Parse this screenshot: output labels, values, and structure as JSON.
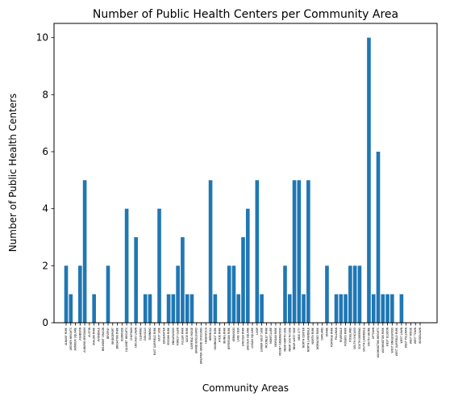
{
  "chart_data": {
    "type": "bar",
    "title": "Number of Public Health Centers per Community Area",
    "xlabel": "Community Areas",
    "ylabel": "Number of Public Health Centers",
    "ylim": [
      0,
      10.5
    ],
    "yticks": [
      0,
      2,
      4,
      6,
      8,
      10
    ],
    "bar_color": "#1f77b4",
    "grid": false,
    "categories": [
      "ALBANY PARK",
      "ARCHER HEIGHTS",
      "ARMOUR SQUARE",
      "ASHBURN",
      "AUBURN GRESHAM",
      "AUSTIN",
      "AVALON PARK",
      "AVONDALE",
      "BELMONT CRAGIN",
      "BEVERLY",
      "BRIDGEPORT",
      "BRIGHTON PARK",
      "BURNSIDE",
      "CALUMET HEIGHTS",
      "CHATHAM",
      "CHICAGO LAWN",
      "CLEARING",
      "DOUGLAS",
      "DUNNING",
      "EAST GARFIELD PARK",
      "EAST SIDE",
      "EDGEWATER",
      "EDISON PARK",
      "ENGLEWOOD",
      "FOREST GLEN",
      "FULLER PARK",
      "GAGE PARK",
      "GARFIELD RIDGE",
      "GRAND BOULEVARD",
      "GREATER GRAND CROSSING",
      "HEGEWISCH",
      "HERMOSA",
      "HUMBOLDT PARK",
      "HYDE PARK",
      "IRVING PARK",
      "JEFFERSON PARK",
      "KENWOOD",
      "LAKE VIEW",
      "LINCOLN PARK",
      "LINCOLN SQUARE",
      "LOGAN SQUARE",
      "LOOP",
      "LOWER WEST SIDE",
      "MCKINLEY PARK",
      "MONTCLARE",
      "MORGAN PARK",
      "MOUNT GREENWOOD",
      "NEAR NORTH SIDE",
      "NEAR SOUTH SIDE",
      "NEAR WEST SIDE",
      "NEW CITY",
      "NORTH CENTER",
      "NORTH LAWNDALE",
      "NORTH PARK",
      "NORWOOD PARK",
      "OAKLAND",
      "OHARE",
      "PORTAGE PARK",
      "PULLMAN",
      "RIVERDALE",
      "ROGERS PARK",
      "ROSELAND",
      "SOUTH CHICAGO",
      "SOUTH DEERING",
      "SOUTH LAWNDALE",
      "SOUTH SHORE",
      "UPTOWN",
      "WASHINGTON HEIGHTS",
      "WASHINGTON PARK",
      "WEST ELSDON",
      "WEST ENGLEWOOD",
      "WEST GARFIELD PARK",
      "WEST LAWN",
      "WEST PULLMAN",
      "WEST RIDGE",
      "WEST TOWN",
      "WOODLAWN"
    ],
    "values": [
      2,
      1,
      0,
      2,
      5,
      0,
      1,
      0,
      0,
      2,
      0,
      0,
      0,
      4,
      0,
      3,
      0,
      1,
      1,
      0,
      4,
      0,
      1,
      1,
      2,
      3,
      1,
      1,
      0,
      0,
      0,
      5,
      1,
      0,
      0,
      2,
      2,
      1,
      3,
      4,
      0,
      5,
      1,
      0,
      0,
      0,
      0,
      2,
      1,
      5,
      5,
      1,
      5,
      0,
      0,
      0,
      2,
      0,
      1,
      1,
      1,
      2,
      2,
      2,
      0,
      10,
      1,
      6,
      1,
      1,
      1,
      0,
      1,
      0,
      0,
      0,
      0
    ]
  }
}
